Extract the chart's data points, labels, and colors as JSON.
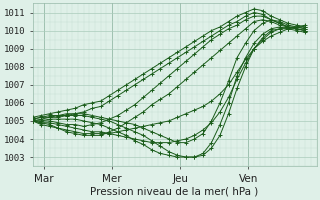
{
  "xlabel": "Pression niveau de la mer( hPa )",
  "xlim": [
    0,
    100
  ],
  "ylim": [
    1002.5,
    1011.5
  ],
  "yticks": [
    1003,
    1004,
    1005,
    1006,
    1007,
    1008,
    1009,
    1010,
    1011
  ],
  "xtick_positions": [
    4,
    28,
    52,
    76
  ],
  "xtick_labels": [
    "Mar",
    "Mer",
    "Jeu",
    "Ven"
  ],
  "vline_positions": [
    4,
    28,
    52,
    76
  ],
  "plot_bg_color": "#dff0e8",
  "line_color": "#1a5c1a",
  "grid_major_color": "#aaccbb",
  "grid_minor_color": "#c4ddd4",
  "lines": [
    {
      "x": [
        0,
        3,
        6,
        9,
        12,
        15,
        18,
        21,
        24,
        27,
        30,
        33,
        36,
        39,
        42,
        45,
        48,
        51,
        54,
        57,
        60,
        63,
        66,
        69,
        72,
        75,
        78,
        81,
        84,
        87,
        90,
        93,
        96
      ],
      "y": [
        1005.2,
        1005.3,
        1005.4,
        1005.5,
        1005.6,
        1005.7,
        1005.9,
        1006.0,
        1006.1,
        1006.4,
        1006.7,
        1007.0,
        1007.3,
        1007.6,
        1007.9,
        1008.2,
        1008.5,
        1008.8,
        1009.1,
        1009.4,
        1009.7,
        1010.0,
        1010.2,
        1010.5,
        1010.8,
        1011.0,
        1011.2,
        1011.1,
        1010.8,
        1010.6,
        1010.4,
        1010.3,
        1010.2
      ]
    },
    {
      "x": [
        0,
        3,
        6,
        9,
        12,
        15,
        18,
        21,
        24,
        27,
        30,
        33,
        36,
        39,
        42,
        45,
        48,
        51,
        54,
        57,
        60,
        63,
        66,
        69,
        72,
        75,
        78,
        81,
        84,
        87,
        90,
        93,
        96
      ],
      "y": [
        1005.1,
        1005.2,
        1005.2,
        1005.3,
        1005.3,
        1005.4,
        1005.5,
        1005.7,
        1005.8,
        1006.1,
        1006.4,
        1006.7,
        1007.0,
        1007.3,
        1007.6,
        1007.9,
        1008.2,
        1008.5,
        1008.8,
        1009.1,
        1009.4,
        1009.7,
        1010.0,
        1010.3,
        1010.5,
        1010.8,
        1011.0,
        1010.9,
        1010.6,
        1010.4,
        1010.2,
        1010.1,
        1010.0
      ]
    },
    {
      "x": [
        0,
        3,
        6,
        9,
        12,
        15,
        18,
        21,
        24,
        27,
        30,
        33,
        36,
        39,
        42,
        45,
        48,
        51,
        54,
        57,
        60,
        63,
        66,
        69,
        72,
        75,
        78,
        81,
        84,
        87,
        90,
        93,
        96
      ],
      "y": [
        1005.0,
        1005.0,
        1005.0,
        1004.9,
        1004.8,
        1004.8,
        1004.7,
        1004.8,
        1004.9,
        1005.1,
        1005.3,
        1005.6,
        1005.9,
        1006.3,
        1006.7,
        1007.1,
        1007.5,
        1007.9,
        1008.3,
        1008.7,
        1009.1,
        1009.5,
        1009.8,
        1010.1,
        1010.3,
        1010.6,
        1010.8,
        1010.8,
        1010.6,
        1010.4,
        1010.2,
        1010.1,
        1010.0
      ]
    },
    {
      "x": [
        0,
        3,
        6,
        9,
        12,
        15,
        18,
        21,
        24,
        27,
        30,
        33,
        36,
        39,
        42,
        45,
        48,
        51,
        54,
        57,
        60,
        63,
        66,
        69,
        72,
        75,
        78,
        81,
        84,
        87,
        90,
        93,
        96
      ],
      "y": [
        1005.0,
        1004.9,
        1004.8,
        1004.6,
        1004.4,
        1004.3,
        1004.2,
        1004.2,
        1004.2,
        1004.4,
        1004.6,
        1004.9,
        1005.2,
        1005.5,
        1005.9,
        1006.2,
        1006.5,
        1006.9,
        1007.3,
        1007.7,
        1008.1,
        1008.5,
        1008.9,
        1009.3,
        1009.7,
        1010.1,
        1010.5,
        1010.6,
        1010.5,
        1010.3,
        1010.2,
        1010.1,
        1010.0
      ]
    },
    {
      "x": [
        0,
        3,
        6,
        9,
        12,
        15,
        18,
        21,
        24,
        27,
        30,
        33,
        36,
        39,
        42,
        45,
        48,
        51,
        54,
        57,
        60,
        63,
        66,
        69,
        72,
        75,
        78,
        81,
        84,
        87,
        90,
        93,
        96
      ],
      "y": [
        1005.1,
        1005.2,
        1005.3,
        1005.3,
        1005.4,
        1005.4,
        1005.4,
        1005.3,
        1005.2,
        1005.1,
        1005.0,
        1004.9,
        1004.8,
        1004.6,
        1004.4,
        1004.2,
        1004.0,
        1003.8,
        1003.8,
        1004.0,
        1004.3,
        1005.0,
        1006.0,
        1007.2,
        1008.5,
        1009.3,
        1010.0,
        1010.4,
        1010.6,
        1010.5,
        1010.3,
        1010.2,
        1010.1
      ]
    },
    {
      "x": [
        0,
        3,
        6,
        9,
        12,
        15,
        18,
        21,
        24,
        27,
        30,
        33,
        36,
        39,
        42,
        45,
        48,
        51,
        54,
        57,
        60,
        63,
        66,
        69,
        72,
        75,
        78,
        81,
        84,
        87,
        90,
        93,
        96
      ],
      "y": [
        1005.0,
        1005.1,
        1005.2,
        1005.2,
        1005.3,
        1005.3,
        1005.3,
        1005.2,
        1005.1,
        1005.0,
        1004.8,
        1004.6,
        1004.4,
        1004.2,
        1003.9,
        1003.6,
        1003.3,
        1003.1,
        1003.0,
        1003.0,
        1003.2,
        1003.8,
        1004.8,
        1006.0,
        1007.5,
        1008.5,
        1009.3,
        1009.8,
        1010.1,
        1010.2,
        1010.1,
        1010.0,
        1009.9
      ]
    },
    {
      "x": [
        0,
        3,
        6,
        9,
        12,
        15,
        18,
        21,
        24,
        27,
        30,
        33,
        36,
        39,
        42,
        45,
        48,
        51,
        54,
        57,
        60,
        63,
        66,
        69,
        72,
        75,
        78,
        81,
        84,
        87,
        90,
        93,
        96
      ],
      "y": [
        1005.0,
        1005.0,
        1005.1,
        1005.1,
        1005.1,
        1005.1,
        1005.0,
        1004.9,
        1004.8,
        1004.6,
        1004.4,
        1004.2,
        1003.9,
        1003.7,
        1003.4,
        1003.2,
        1003.1,
        1003.0,
        1003.0,
        1003.0,
        1003.1,
        1003.5,
        1004.2,
        1005.4,
        1006.8,
        1008.0,
        1009.0,
        1009.6,
        1010.0,
        1010.1,
        1010.1,
        1010.2,
        1010.2
      ]
    },
    {
      "x": [
        0,
        3,
        6,
        9,
        12,
        15,
        18,
        21,
        24,
        27,
        30,
        33,
        36,
        39,
        42,
        45,
        48,
        51,
        54,
        57,
        60,
        63,
        66,
        69,
        72,
        75,
        78,
        81,
        84,
        87,
        90,
        93,
        96
      ],
      "y": [
        1005.0,
        1004.9,
        1004.9,
        1004.8,
        1004.7,
        1004.6,
        1004.5,
        1004.4,
        1004.4,
        1004.3,
        1004.2,
        1004.1,
        1004.0,
        1003.9,
        1003.8,
        1003.8,
        1003.8,
        1003.9,
        1004.0,
        1004.2,
        1004.5,
        1004.9,
        1005.5,
        1006.3,
        1007.3,
        1008.2,
        1009.0,
        1009.5,
        1009.9,
        1010.1,
        1010.2,
        1010.2,
        1010.1
      ]
    },
    {
      "x": [
        0,
        3,
        6,
        9,
        12,
        15,
        18,
        21,
        24,
        27,
        30,
        33,
        36,
        39,
        42,
        45,
        48,
        51,
        54,
        57,
        60,
        63,
        66,
        69,
        72,
        75,
        78,
        81,
        84,
        87,
        90,
        93,
        96
      ],
      "y": [
        1005.0,
        1004.8,
        1004.7,
        1004.6,
        1004.5,
        1004.4,
        1004.3,
        1004.3,
        1004.3,
        1004.3,
        1004.4,
        1004.5,
        1004.6,
        1004.7,
        1004.8,
        1004.9,
        1005.0,
        1005.2,
        1005.4,
        1005.6,
        1005.8,
        1006.1,
        1006.5,
        1007.0,
        1007.7,
        1008.4,
        1009.0,
        1009.4,
        1009.7,
        1009.9,
        1010.1,
        1010.2,
        1010.3
      ]
    }
  ]
}
